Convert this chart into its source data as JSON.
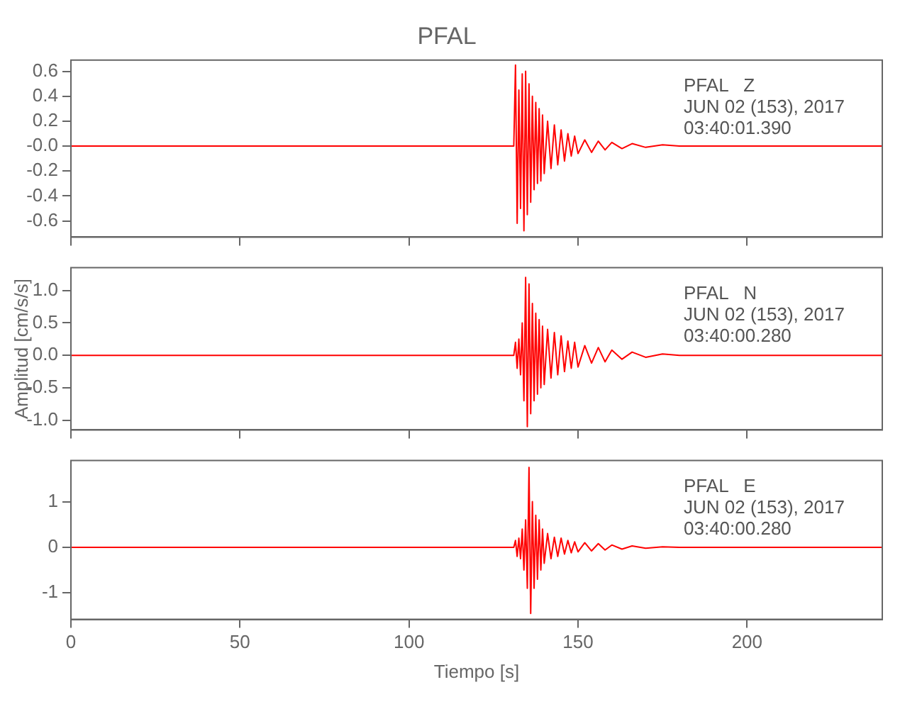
{
  "chart_data": [
    {
      "type": "line",
      "title": "PFAL",
      "annotations": [
        "PFAL   Z",
        "JUN 02 (153), 2017",
        "03:40:01.390"
      ],
      "tick_labels": "y",
      "xlim": [
        0,
        240
      ],
      "xticks": [
        0,
        50,
        100,
        150,
        200
      ],
      "ylim": [
        -0.73,
        0.69
      ],
      "yticks": [
        -0.6,
        -0.4,
        -0.2,
        {
          "value": 0,
          "label": "-0.0"
        },
        0.2,
        0.4,
        0.6
      ],
      "x": [
        0,
        131,
        131.5,
        132,
        132.5,
        133,
        133.5,
        134,
        134.5,
        135,
        135.5,
        136,
        136.5,
        137,
        137.5,
        138,
        138.5,
        139,
        139.5,
        140,
        141,
        142,
        143,
        144,
        145,
        146,
        147,
        148,
        149,
        150,
        152,
        154,
        156,
        158,
        160,
        163,
        166,
        170,
        175,
        180,
        240
      ],
      "series": [
        {
          "color": "#ff0000",
          "values": [
            0,
            0,
            0.65,
            -0.62,
            0.45,
            -0.5,
            0.58,
            -0.68,
            0.6,
            -0.55,
            0.5,
            -0.45,
            0.4,
            -0.35,
            0.35,
            -0.3,
            0.3,
            -0.28,
            0.25,
            -0.22,
            0.2,
            -0.18,
            0.17,
            -0.15,
            0.13,
            -0.12,
            0.1,
            -0.08,
            0.08,
            -0.06,
            0.05,
            -0.05,
            0.04,
            -0.03,
            0.03,
            -0.02,
            0.02,
            -0.01,
            0.01,
            0,
            0
          ]
        }
      ]
    },
    {
      "type": "line",
      "ylabel": "Amplitud [cm/s/s]",
      "annotations": [
        "PFAL   N",
        "JUN 02 (153), 2017",
        "03:40:00.280"
      ],
      "tick_labels": "y",
      "xlim": [
        0,
        240
      ],
      "xticks": [
        0,
        50,
        100,
        150,
        200
      ],
      "ylim": [
        -1.15,
        1.35
      ],
      "yticks": [
        {
          "value": -1,
          "label": "-1.0"
        },
        -0.5,
        {
          "value": 0,
          "label": "0.0"
        },
        0.5,
        {
          "value": 1,
          "label": "1.0"
        }
      ],
      "x": [
        0,
        131,
        131.5,
        132,
        132.5,
        133,
        133.5,
        134,
        134.5,
        135,
        135.5,
        136,
        136.5,
        137,
        137.5,
        138,
        138.5,
        139,
        139.5,
        140,
        141,
        142,
        143,
        144,
        145,
        146,
        147,
        148,
        149,
        150,
        152,
        154,
        156,
        158,
        160,
        163,
        166,
        170,
        175,
        180,
        240
      ],
      "series": [
        {
          "color": "#ff0000",
          "values": [
            0,
            0,
            0.2,
            -0.2,
            0.25,
            -0.3,
            0.5,
            -0.7,
            1.2,
            -1.1,
            1.1,
            -0.9,
            0.8,
            -0.7,
            0.65,
            -0.6,
            0.55,
            -0.5,
            0.45,
            -0.45,
            0.4,
            -0.35,
            0.35,
            -0.3,
            0.3,
            -0.25,
            0.22,
            -0.2,
            0.2,
            -0.18,
            0.15,
            -0.12,
            0.12,
            -0.1,
            0.08,
            -0.06,
            0.05,
            -0.03,
            0.02,
            0,
            0
          ]
        }
      ]
    },
    {
      "type": "line",
      "xlabel": "Tiempo [s]",
      "annotations": [
        "PFAL   E",
        "JUN 02 (153), 2017",
        "03:40:00.280"
      ],
      "xlim": [
        0,
        240
      ],
      "xticks": [
        0,
        50,
        100,
        150,
        200
      ],
      "ylim": [
        -1.58,
        1.9
      ],
      "yticks": [
        -1,
        0,
        1
      ],
      "x": [
        0,
        131,
        131.5,
        132,
        132.5,
        133,
        133.5,
        134,
        134.5,
        135,
        135.5,
        136,
        136.5,
        137,
        137.5,
        138,
        138.5,
        139,
        139.5,
        140,
        141,
        142,
        143,
        144,
        145,
        146,
        147,
        148,
        149,
        150,
        152,
        154,
        156,
        158,
        160,
        163,
        166,
        170,
        175,
        180,
        240
      ],
      "series": [
        {
          "color": "#ff0000",
          "values": [
            0,
            0,
            0.15,
            -0.2,
            0.2,
            -0.25,
            0.4,
            -0.5,
            0.6,
            -0.9,
            1.75,
            -1.45,
            1.0,
            -0.9,
            0.7,
            -0.7,
            0.6,
            -0.5,
            0.4,
            -0.35,
            0.3,
            -0.25,
            0.22,
            -0.2,
            0.2,
            -0.15,
            0.15,
            -0.12,
            0.12,
            -0.1,
            0.1,
            -0.08,
            0.08,
            -0.06,
            0.05,
            -0.04,
            0.03,
            -0.02,
            0.01,
            0,
            0
          ]
        }
      ]
    }
  ]
}
